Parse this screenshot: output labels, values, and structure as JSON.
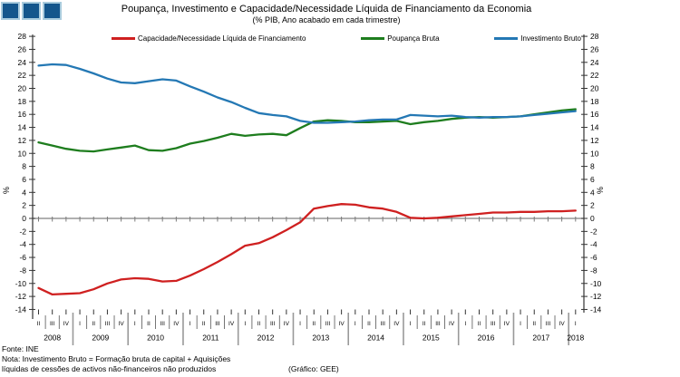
{
  "header": {
    "title": "Poupança, Investimento e Capacidade/Necessidade Líquida de Financiamento da Economia",
    "subtitle": "(% PIB, Ano acabado em cada trimestre)"
  },
  "legend": [
    {
      "label": "Capacidade/Necessidade Líquida de Financiamento",
      "color": "#cf2020"
    },
    {
      "label": "Poupança Bruta",
      "color": "#1e7d1e"
    },
    {
      "label": "Investimento Bruto",
      "color": "#2478b4"
    }
  ],
  "footer": {
    "fonte": "Fonte: INE",
    "nota_line1": "Nota: Investimento Bruto = Formação bruta de capital + Aquisições",
    "nota_line2": "líquidas de cessões de activos não-financeiros não produzidos",
    "credit": "(Gráfico: GEE)"
  },
  "chart_data": {
    "type": "line",
    "title": "Poupança, Investimento e Capacidade/Necessidade Líquida de Financiamento da Economia",
    "subtitle": "(% PIB, Ano acabado em cada trimestre)",
    "ylabel_left": "%",
    "ylabel_right": "%",
    "ylim": [
      -14,
      28
    ],
    "ytick_step": 2,
    "grid": false,
    "legend_position": "top",
    "years": [
      {
        "year": "2008",
        "quarters": [
          "II",
          "III",
          "IV"
        ]
      },
      {
        "year": "2009",
        "quarters": [
          "I",
          "II",
          "III",
          "IV"
        ]
      },
      {
        "year": "2010",
        "quarters": [
          "I",
          "II",
          "III",
          "IV"
        ]
      },
      {
        "year": "2011",
        "quarters": [
          "I",
          "II",
          "III",
          "IV"
        ]
      },
      {
        "year": "2012",
        "quarters": [
          "I",
          "II",
          "III",
          "IV"
        ]
      },
      {
        "year": "2013",
        "quarters": [
          "I",
          "II",
          "III",
          "IV"
        ]
      },
      {
        "year": "2014",
        "quarters": [
          "I",
          "II",
          "III",
          "IV"
        ]
      },
      {
        "year": "2015",
        "quarters": [
          "I",
          "II",
          "III",
          "IV"
        ]
      },
      {
        "year": "2016",
        "quarters": [
          "I",
          "II",
          "III",
          "IV"
        ]
      },
      {
        "year": "2017",
        "quarters": [
          "I",
          "II",
          "III",
          "IV"
        ]
      },
      {
        "year": "2018",
        "quarters": [
          "I"
        ]
      }
    ],
    "series": [
      {
        "name": "Capacidade/Necessidade Líquida de Financiamento",
        "color": "#cf2020",
        "values": [
          -10.7,
          -11.7,
          -11.6,
          -11.5,
          -10.9,
          -10.0,
          -9.4,
          -9.2,
          -9.3,
          -9.7,
          -9.6,
          -8.8,
          -7.8,
          -6.7,
          -5.5,
          -4.2,
          -3.8,
          -2.9,
          -1.8,
          -0.6,
          1.5,
          1.9,
          2.2,
          2.1,
          1.7,
          1.5,
          1.0,
          0.1,
          0.0,
          0.1,
          0.3,
          0.5,
          0.7,
          0.9,
          0.9,
          1.0,
          1.0,
          1.1,
          1.1,
          1.2
        ]
      },
      {
        "name": "Poupança Bruta",
        "color": "#1e7d1e",
        "values": [
          11.7,
          11.2,
          10.7,
          10.4,
          10.3,
          10.6,
          10.9,
          11.2,
          10.5,
          10.4,
          10.8,
          11.5,
          11.9,
          12.4,
          13.0,
          12.7,
          12.9,
          13.0,
          12.8,
          13.9,
          14.9,
          15.1,
          15.0,
          14.8,
          14.8,
          14.9,
          15.0,
          14.5,
          14.8,
          15.0,
          15.3,
          15.5,
          15.6,
          15.5,
          15.6,
          15.7,
          16.0,
          16.3,
          16.6,
          16.8
        ]
      },
      {
        "name": "Investimento Bruto",
        "color": "#2478b4",
        "values": [
          23.5,
          23.7,
          23.6,
          23.0,
          22.3,
          21.5,
          20.9,
          20.8,
          21.1,
          21.4,
          21.2,
          20.3,
          19.5,
          18.6,
          17.9,
          17.0,
          16.2,
          15.9,
          15.7,
          15.0,
          14.7,
          14.7,
          14.8,
          14.9,
          15.1,
          15.2,
          15.2,
          15.9,
          15.8,
          15.7,
          15.8,
          15.6,
          15.5,
          15.6,
          15.6,
          15.7,
          15.9,
          16.1,
          16.3,
          16.5
        ]
      }
    ]
  }
}
